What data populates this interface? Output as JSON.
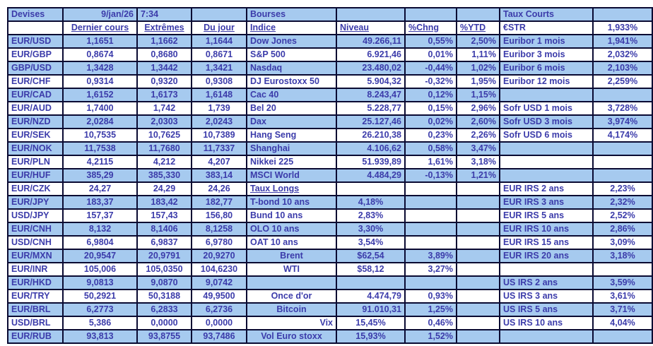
{
  "meta": {
    "date": "9/jan/26",
    "time": "7:34"
  },
  "colors": {
    "band_blue": "#a6caef",
    "row_white": "#ffffff",
    "text_blue": "#3b3baa",
    "grid_border": "#0a0a32"
  },
  "sections": {
    "left_title": "Devises",
    "middle_title": "Bourses",
    "middle_subtitle": "Taux Longs",
    "right_title": "Taux Courts"
  },
  "grid": {
    "rows": [
      [
        "Devises",
        {
          "t": "9/jan/26",
          "a": "r"
        },
        {
          "t": "7:34",
          "a": "l"
        },
        "",
        "Bourses",
        "",
        "",
        "",
        "Taux Courts",
        ""
      ],
      [
        "",
        {
          "t": "Dernier cours",
          "u": 1
        },
        {
          "t": "Extrêmes",
          "u": 1
        },
        {
          "t": "Du jour",
          "u": 1
        },
        {
          "t": "Indice",
          "u": 1
        },
        {
          "t": "Niveau",
          "u": 1,
          "a": "l"
        },
        {
          "t": "%Chng",
          "u": 1,
          "a": "l"
        },
        {
          "t": "%YTD",
          "u": 1,
          "a": "l"
        },
        "€STR",
        "1,933%"
      ],
      [
        "EUR/USD",
        "1,1651",
        "1,1662",
        "1,1644",
        "Dow Jones",
        "49.266,11",
        "0,55%",
        "2,50%",
        "Euribor 1 mois",
        "1,941%"
      ],
      [
        "EUR/GBP",
        "0,8674",
        "0,8680",
        "0,8671",
        "S&P 500",
        "6.921,46",
        "0,01%",
        "1,11%",
        "Euribor 3 mois",
        "2,032%"
      ],
      [
        "GBP/USD",
        "1,3428",
        "1,3442",
        "1,3421",
        "Nasdaq",
        "23.480,02",
        "-0,44%",
        "1,02%",
        "Euribor 6 mois",
        "2,103%"
      ],
      [
        "EUR/CHF",
        "0,9314",
        "0,9320",
        "0,9308",
        "DJ Eurostoxx 50",
        "5.904,32",
        "-0,32%",
        "1,95%",
        "Euribor 12 mois",
        "2,259%"
      ],
      [
        "EUR/CAD",
        "1,6152",
        "1,6173",
        "1,6148",
        "Cac 40",
        "8.243,47",
        "0,12%",
        "1,15%",
        "",
        ""
      ],
      [
        "EUR/AUD",
        "1,7400",
        "1,742",
        "1,739",
        "Bel 20",
        "5.228,77",
        "0,15%",
        "2,96%",
        "Sofr USD 1 mois",
        "3,728%"
      ],
      [
        "EUR/NZD",
        "2,0284",
        "2,0303",
        "2,0243",
        "Dax",
        "25.127,46",
        "0,02%",
        "2,60%",
        "Sofr USD 3 mois",
        "3,974%"
      ],
      [
        "EUR/SEK",
        "10,7535",
        "10,7625",
        "10,7389",
        "Hang Seng",
        "26.210,38",
        "0,23%",
        "2,26%",
        "Sofr USD 6 mois",
        "4,174%"
      ],
      [
        "EUR/NOK",
        "11,7538",
        "11,7680",
        "11,7337",
        "Shanghai",
        "4.106,62",
        "0,58%",
        "3,47%",
        "",
        ""
      ],
      [
        "EUR/PLN",
        "4,2115",
        "4,212",
        "4,207",
        "Nikkei 225",
        "51.939,89",
        "1,61%",
        "3,18%",
        "",
        ""
      ],
      [
        "EUR/HUF",
        "385,29",
        "385,330",
        "383,14",
        "MSCI World",
        "4.484,29",
        "-0,13%",
        "1,21%",
        "",
        ""
      ],
      [
        "EUR/CZK",
        "24,27",
        "24,29",
        "24,26",
        {
          "t": "Taux Longs",
          "u": 1
        },
        "",
        "",
        "",
        "EUR IRS 2 ans",
        "2,23%"
      ],
      [
        "EUR/JPY",
        "183,37",
        "183,42",
        "182,77",
        "T-bond 10 ans",
        {
          "t": "4,18%",
          "a": "c"
        },
        "",
        "",
        "EUR IRS 3 ans",
        "2,32%"
      ],
      [
        "USD/JPY",
        "157,37",
        "157,43",
        "156,80",
        "Bund 10 ans",
        {
          "t": "2,83%",
          "a": "c"
        },
        "",
        "",
        "EUR IRS 5 ans",
        "2,52%"
      ],
      [
        "EUR/CNH",
        "8,132",
        "8,1406",
        "8,1258",
        "OLO 10 ans",
        {
          "t": "3,30%",
          "a": "c"
        },
        "",
        "",
        "EUR IRS 10 ans",
        "2,86%"
      ],
      [
        "USD/CNH",
        "6,9804",
        "6,9837",
        "6,9780",
        "OAT 10 ans",
        {
          "t": "3,54%",
          "a": "c"
        },
        "",
        "",
        "EUR IRS 15 ans",
        "3,09%"
      ],
      [
        "EUR/MXN",
        "20,9547",
        "20,9791",
        "20,9270",
        {
          "t": "Brent",
          "a": "c"
        },
        {
          "t": "$62,54",
          "a": "c"
        },
        "3,89%",
        "",
        "EUR IRS 20 ans",
        "3,18%"
      ],
      [
        "EUR/INR",
        "105,006",
        "105,0350",
        "104,6230",
        {
          "t": "WTI",
          "a": "c"
        },
        {
          "t": "$58,12",
          "a": "c"
        },
        "3,27%",
        "",
        "",
        ""
      ],
      [
        "EUR/HKD",
        "9,0813",
        "9,0870",
        "9,0742",
        "",
        "",
        "",
        "",
        "US IRS 2 ans",
        "3,59%"
      ],
      [
        "EUR/TRY",
        "50,2921",
        "50,3188",
        "49,9500",
        {
          "t": "Once d'or",
          "a": "c"
        },
        "4.474,79",
        "0,93%",
        "",
        "US IRS 3 ans",
        "3,61%"
      ],
      [
        "EUR/BRL",
        "6,2773",
        "6,2833",
        "6,2736",
        {
          "t": "Bitcoin",
          "a": "c"
        },
        "91.010,31",
        "1,25%",
        "",
        "US IRS 5 ans",
        "3,71%"
      ],
      [
        "USD/BRL",
        "5,386",
        "0,0000",
        "0,0000",
        {
          "t": "Vix",
          "a": "r"
        },
        {
          "t": "15,45%",
          "a": "c"
        },
        "0,46%",
        "",
        "US IRS 10 ans",
        "4,04%"
      ],
      [
        "EUR/RUB",
        "93,813",
        "93,8755",
        "93,7486",
        {
          "t": "Vol Euro stoxx",
          "a": "c"
        },
        {
          "t": "15,93%",
          "a": "c"
        },
        "1,52%",
        "",
        "",
        ""
      ]
    ]
  }
}
